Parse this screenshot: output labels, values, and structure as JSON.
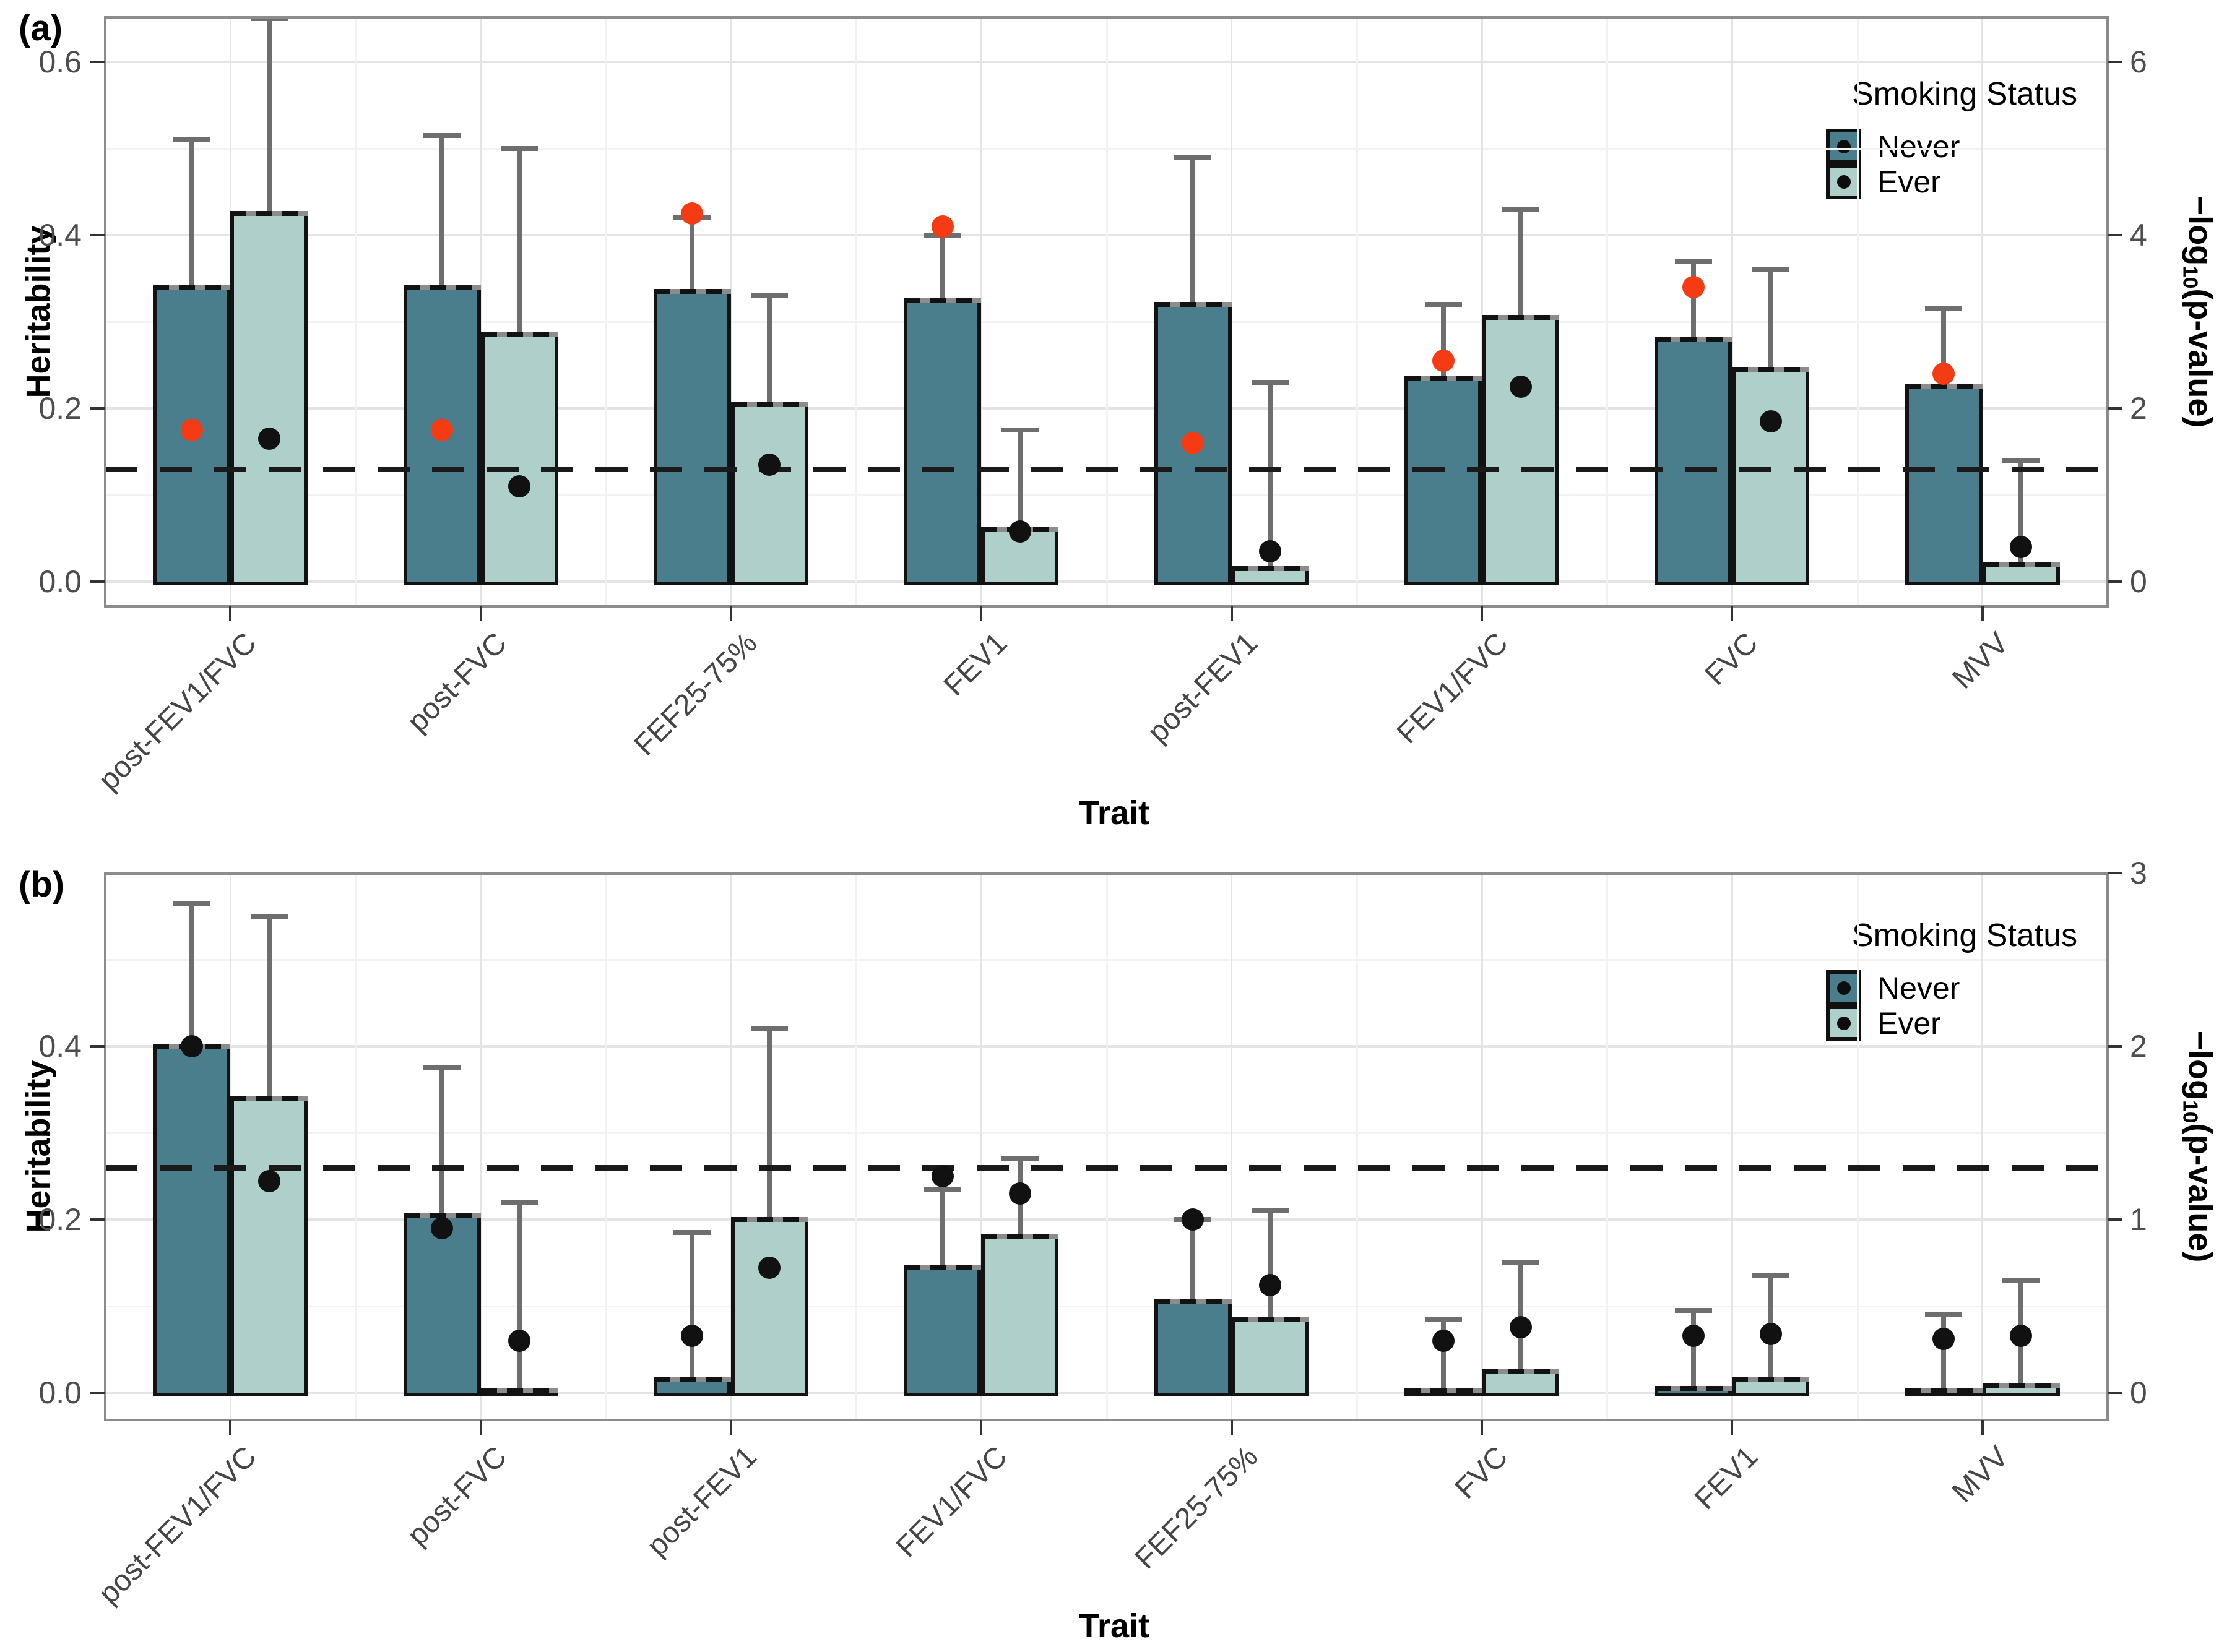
{
  "figure": {
    "background": "#ffffff",
    "significance_line_right_axis_value": 1.3
  },
  "chart_data": [
    {
      "type": "bar",
      "panel_label": "(a)",
      "xlabel": "Trait",
      "ylabel": "Heritability",
      "ylabel_right": {
        "prefix": "−log",
        "sub": "10",
        "suffix": "(p-value)"
      },
      "categories": [
        "post-FEV1/FVC",
        "post-FVC",
        "FEF25-75%",
        "FEV1",
        "post-FEV1",
        "FEV1/FVC",
        "FVC",
        "MVV"
      ],
      "y_left": {
        "ticks": [
          0.0,
          0.2,
          0.4,
          0.6
        ],
        "tick_labels": [
          "0.0",
          "0.2",
          "0.4",
          "0.6"
        ],
        "lim": [
          -0.029,
          0.651
        ]
      },
      "y_right": {
        "ticks": [
          0,
          2,
          4,
          6
        ],
        "tick_labels": [
          "0",
          "2",
          "4",
          "6"
        ],
        "lim": [
          0,
          6.51
        ],
        "left_units_per_right_unit": 0.1
      },
      "dashed_line_right_units": 1.3,
      "grid": true,
      "legend": {
        "title": "Smoking Status",
        "position": "inside-top-right"
      },
      "series": [
        {
          "name": "Never",
          "color": "#4A7E8C",
          "dot_color": "#F43B13",
          "heritability": [
            0.34,
            0.34,
            0.335,
            0.325,
            0.32,
            0.235,
            0.28,
            0.225
          ],
          "ci_upper": [
            0.51,
            0.515,
            0.42,
            0.4,
            0.49,
            0.32,
            0.37,
            0.315
          ],
          "neglog10p": [
            1.75,
            1.75,
            4.25,
            4.1,
            1.6,
            2.55,
            3.4,
            2.4
          ]
        },
        {
          "name": "Ever",
          "color": "#AFD0CA",
          "dot_color": "#111111",
          "heritability": [
            0.425,
            0.285,
            0.205,
            0.06,
            0.015,
            0.305,
            0.245,
            0.02
          ],
          "ci_upper": [
            0.65,
            0.5,
            0.33,
            0.175,
            0.23,
            0.43,
            0.36,
            0.14
          ],
          "neglog10p": [
            1.65,
            1.1,
            1.35,
            0.58,
            0.35,
            2.25,
            1.85,
            0.4
          ]
        }
      ]
    },
    {
      "type": "bar",
      "panel_label": "(b)",
      "xlabel": "Trait",
      "ylabel": "Heritability",
      "ylabel_right": {
        "prefix": "−log",
        "sub": "10",
        "suffix": "(p-value)"
      },
      "categories": [
        "post-FEV1/FVC",
        "post-FVC",
        "post-FEV1",
        "FEV1/FVC",
        "FEF25-75%",
        "FVC",
        "FEV1",
        "MVV"
      ],
      "y_left": {
        "ticks": [
          0.0,
          0.2,
          0.4
        ],
        "tick_labels": [
          "0.0",
          "0.2",
          "0.4"
        ],
        "lim": [
          -0.031,
          0.6
        ]
      },
      "y_right": {
        "ticks": [
          0,
          1,
          2,
          3
        ],
        "tick_labels": [
          "0",
          "1",
          "2",
          "3"
        ],
        "lim": [
          0,
          3.0
        ],
        "left_units_per_right_unit": 0.2
      },
      "dashed_line_right_units": 1.3,
      "grid": true,
      "legend": {
        "title": "Smoking Status",
        "position": "inside-top-right"
      },
      "series": [
        {
          "name": "Never",
          "color": "#4A7E8C",
          "dot_color": "#111111",
          "heritability": [
            0.4,
            0.205,
            0.015,
            0.145,
            0.105,
            0.002,
            0.005,
            0.003
          ],
          "ci_upper": [
            0.565,
            0.375,
            0.185,
            0.235,
            0.2,
            0.085,
            0.095,
            0.09
          ],
          "neglog10p": [
            2.0,
            0.95,
            0.33,
            1.25,
            1.0,
            0.3,
            0.33,
            0.31
          ]
        },
        {
          "name": "Ever",
          "color": "#AFD0CA",
          "dot_color": "#111111",
          "heritability": [
            0.34,
            0.003,
            0.2,
            0.18,
            0.085,
            0.025,
            0.015,
            0.008
          ],
          "ci_upper": [
            0.55,
            0.22,
            0.42,
            0.27,
            0.21,
            0.15,
            0.135,
            0.13
          ],
          "neglog10p": [
            1.22,
            0.3,
            0.72,
            1.15,
            0.62,
            0.38,
            0.34,
            0.33
          ]
        }
      ]
    }
  ]
}
